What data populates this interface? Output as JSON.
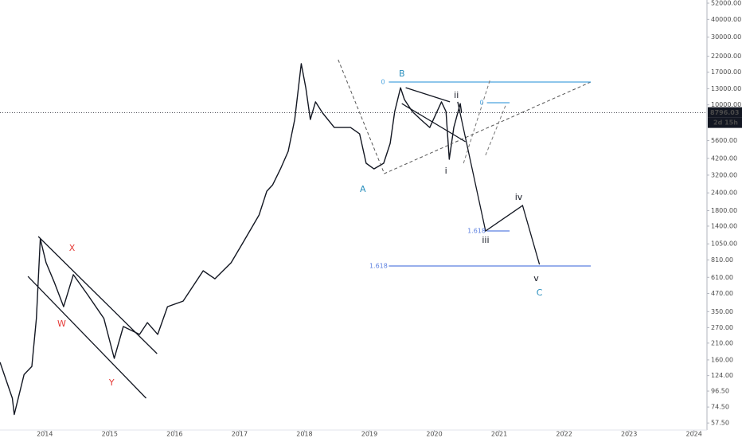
{
  "chart_data": {
    "type": "line",
    "log_scale": true,
    "grid": false,
    "color": "#131722",
    "x": [
      2013.31,
      2013.5,
      2013.53,
      2013.68,
      2013.8,
      2013.87,
      2013.93,
      2014.02,
      2014.15,
      2014.29,
      2014.44,
      2014.66,
      2014.91,
      2015.07,
      2015.21,
      2015.46,
      2015.58,
      2015.74,
      2015.89,
      2016.13,
      2016.44,
      2016.62,
      2016.87,
      2017.05,
      2017.3,
      2017.42,
      2017.51,
      2017.63,
      2017.75,
      2017.85,
      2017.95,
      2018.02,
      2018.09,
      2018.17,
      2018.28,
      2018.46,
      2018.71,
      2018.85,
      2018.95,
      2019.07,
      2019.22,
      2019.32,
      2019.39,
      2019.48,
      2019.54,
      2019.66,
      2019.79,
      2019.93,
      2020.11,
      2020.18,
      2020.23,
      2020.3,
      2020.4,
      2020.42
    ],
    "values": [
      154,
      86,
      66,
      126,
      144,
      313,
      1137,
      773,
      558,
      379,
      637,
      460,
      313,
      164,
      275,
      242,
      293,
      242,
      379,
      415,
      679,
      596,
      773,
      1067,
      1675,
      2466,
      2735,
      3540,
      4710,
      7890,
      19500,
      13200,
      7890,
      10500,
      8750,
      6930,
      6930,
      6250,
      3880,
      3540,
      3880,
      5360,
      8980,
      13200,
      10900,
      8980,
      7890,
      6930,
      10500,
      8980,
      4140,
      6930,
      10200,
      8796.03
    ],
    "xlim": [
      2013.31,
      2024.2
    ],
    "xticks": [
      2014,
      2015,
      2016,
      2017,
      2018,
      2019,
      2020,
      2021,
      2022,
      2023,
      2024
    ],
    "ylim": [
      51.3,
      54760
    ],
    "yticks": [
      {
        "value": 52000,
        "label": "52000.00"
      },
      {
        "value": 40000,
        "label": "40000.00"
      },
      {
        "value": 30000,
        "label": "30000.00"
      },
      {
        "value": 22000,
        "label": "22000.00"
      },
      {
        "value": 17000,
        "label": "17000.00"
      },
      {
        "value": 13000,
        "label": "13000.00"
      },
      {
        "value": 10000,
        "label": "10000.00"
      },
      {
        "value": 5600,
        "label": "5600.00"
      },
      {
        "value": 4200,
        "label": "4200.00"
      },
      {
        "value": 3200,
        "label": "3200.00"
      },
      {
        "value": 2400,
        "label": "2400.00"
      },
      {
        "value": 1800,
        "label": "1800.00"
      },
      {
        "value": 1400,
        "label": "1400.00"
      },
      {
        "value": 1050,
        "label": "1050.00"
      },
      {
        "value": 810,
        "label": "810.00"
      },
      {
        "value": 610,
        "label": "610.00"
      },
      {
        "value": 470,
        "label": "470.00"
      },
      {
        "value": 350,
        "label": "350.00"
      },
      {
        "value": 270,
        "label": "270.00"
      },
      {
        "value": 210,
        "label": "210.00"
      },
      {
        "value": 160,
        "label": "160.00"
      },
      {
        "value": 124,
        "label": "124.00"
      },
      {
        "value": 96.5,
        "label": "96.50"
      },
      {
        "value": 74.5,
        "label": "74.50"
      },
      {
        "value": 57.5,
        "label": "57.50"
      }
    ],
    "last_price": {
      "value": 8796.03,
      "label": "8796.03"
    },
    "countdown": "2d 15h",
    "lines": [
      {
        "x": [
          2013.9,
          2015.73
        ],
        "y": [
          1183,
          177
        ],
        "color": "#131722",
        "dashed": false
      },
      {
        "x": [
          2013.74,
          2015.56
        ],
        "y": [
          619,
          86
        ],
        "color": "#131722",
        "dashed": false
      },
      {
        "x": [
          2018.52,
          2019.23,
          2022.41
        ],
        "y": [
          20800,
          3280,
          14490
        ],
        "color": "#555555",
        "dashed": true
      },
      {
        "x": [
          2019.3,
          2022.41
        ],
        "y": [
          14490,
          14490
        ],
        "color": "#4aa3df",
        "dashed": false
      },
      {
        "x": [
          2019.3,
          2022.41
        ],
        "y": [
          733,
          733
        ],
        "color": "#5b7fe0",
        "dashed": false
      },
      {
        "x": [
          2020.81,
          2021.16
        ],
        "y": [
          10350,
          10350
        ],
        "color": "#4aa3df",
        "dashed": false
      },
      {
        "x": [
          2020.81,
          2021.16
        ],
        "y": [
          1294,
          1294
        ],
        "color": "#5b7fe0",
        "dashed": false
      },
      {
        "x": [
          2019.56,
          2020.24
        ],
        "y": [
          13210,
          10500
        ],
        "color": "#131722",
        "dashed": false
      },
      {
        "x": [
          2019.5,
          2020.48
        ],
        "y": [
          10210,
          5500
        ],
        "color": "#131722",
        "dashed": false
      },
      {
        "x": [
          2020.36,
          2020.79,
          2021.36,
          2021.62
        ],
        "y": [
          10500,
          1294,
          1954,
          752
        ],
        "color": "#131722",
        "dashed": false
      },
      {
        "x": [
          2020.45,
          2020.86
        ],
        "y": [
          3880,
          15070
        ],
        "color": "#777777",
        "dashed": true
      },
      {
        "x": [
          2020.79,
          2021.11
        ],
        "y": [
          4420,
          10210
        ],
        "color": "#777777",
        "dashed": true
      }
    ],
    "annotations": [
      {
        "text": "X",
        "x": 2014.42,
        "y": 975,
        "color": "#e53935"
      },
      {
        "text": "W",
        "x": 2014.26,
        "y": 286,
        "color": "#e53935"
      },
      {
        "text": "Y",
        "x": 2015.03,
        "y": 110,
        "color": "#e53935"
      },
      {
        "text": "A",
        "x": 2018.9,
        "y": 2535,
        "color": "#2a8fbd"
      },
      {
        "text": "B",
        "x": 2019.5,
        "y": 16480,
        "color": "#2a8fbd"
      },
      {
        "text": "C",
        "x": 2021.62,
        "y": 472,
        "color": "#2a8fbd"
      },
      {
        "text": "i",
        "x": 2020.18,
        "y": 3410,
        "color": "#131722"
      },
      {
        "text": "ii",
        "x": 2020.34,
        "y": 11610,
        "color": "#131722"
      },
      {
        "text": "iii",
        "x": 2020.79,
        "y": 1110,
        "color": "#131722"
      },
      {
        "text": "iv",
        "x": 2021.3,
        "y": 2230,
        "color": "#131722"
      },
      {
        "text": "v",
        "x": 2021.57,
        "y": 596,
        "color": "#131722"
      },
      {
        "text": "0",
        "x": 2019.21,
        "y": 14490,
        "color": "#4aa3df"
      },
      {
        "text": "0",
        "x": 2020.73,
        "y": 10350,
        "color": "#4aa3df"
      },
      {
        "text": "1.618",
        "x": 2020.65,
        "y": 1294,
        "color": "#5b7fe0"
      },
      {
        "text": "1.618",
        "x": 2019.14,
        "y": 733,
        "color": "#5b7fe0"
      }
    ]
  }
}
